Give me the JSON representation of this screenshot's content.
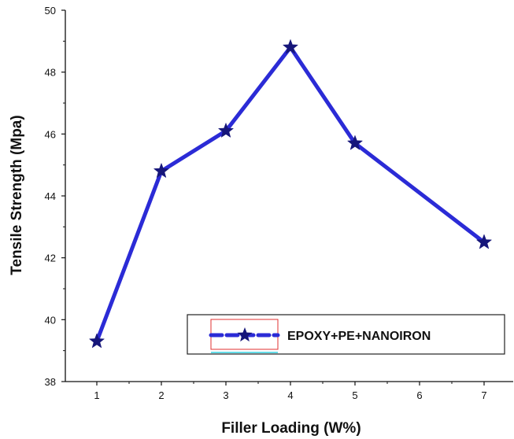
{
  "chart_data": {
    "type": "line",
    "title": "",
    "xlabel": "Filler Loading (W%)",
    "ylabel": "Tensile Strength (Mpa)",
    "categories": [
      "1",
      "2",
      "3",
      "4",
      "5",
      "6",
      "7"
    ],
    "series": [
      {
        "name": "EPOXY+PE+NANOIRON",
        "points": [
          {
            "x": "1",
            "y": 39.3
          },
          {
            "x": "2",
            "y": 44.8
          },
          {
            "x": "3",
            "y": 46.1
          },
          {
            "x": "4",
            "y": 48.8
          },
          {
            "x": "5",
            "y": 45.7
          },
          {
            "x": "7",
            "y": 42.5
          }
        ]
      }
    ],
    "ylim": [
      38,
      50
    ],
    "yticks": [
      38,
      40,
      42,
      44,
      46,
      48,
      50
    ],
    "grid": false,
    "legend_position": "bottom-right",
    "marker": "star",
    "colors": {
      "line": "#2b2bd6",
      "marker": "#16167a",
      "axis": "#111111"
    }
  }
}
